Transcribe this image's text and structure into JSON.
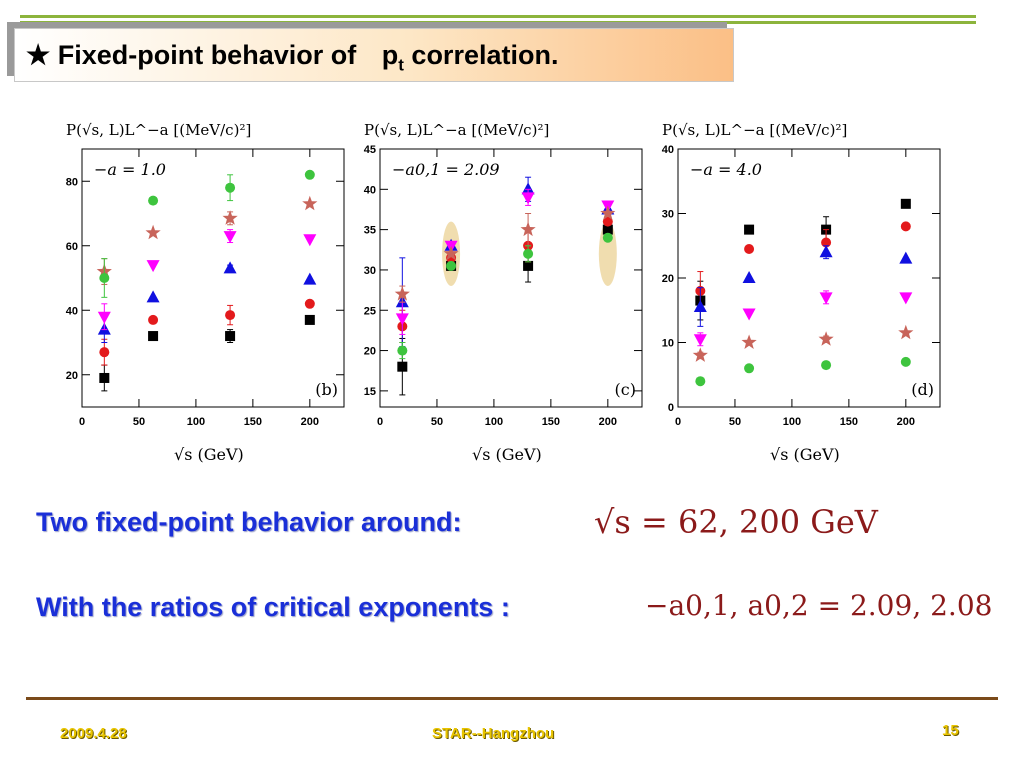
{
  "slide": {
    "title_prefix": "★ Fixed-point behavior of",
    "title_var": "p",
    "title_sub": "t",
    "title_suffix": "correlation.",
    "line1": "Two fixed-point behavior around:",
    "line2": "With the ratios of critical exponents :",
    "formula1": "√s = 62,    200 GeV",
    "formula2": "−a0,1, a0,2 = 2.09,   2.08",
    "footer_date": "2009.4.28",
    "footer_event": "STAR--Hangzhou",
    "footer_page": "15"
  },
  "colors": {
    "black": "#000000",
    "red": "#e31a1c",
    "blue": "#1010e0",
    "magenta": "#ff00ff",
    "star": "#c8645a",
    "green": "#3ec43e"
  },
  "chart_data": [
    {
      "type": "scatter",
      "ylabel": "P(√s, L)L^−a [(MeV/c)²]",
      "xlabel": "√s (GeV)",
      "annotation": "−a = 1.0",
      "panel_label": "(b)",
      "xlim": [
        0,
        230
      ],
      "ylim": [
        10,
        90
      ],
      "xticks": [
        0,
        50,
        100,
        150,
        200
      ],
      "yticks": [
        20,
        40,
        60,
        80
      ],
      "series": [
        {
          "name": "square",
          "marker": "square",
          "color": "#000000",
          "x": [
            19.6,
            62.4,
            130,
            200
          ],
          "y": [
            19,
            32,
            32,
            37
          ],
          "err": [
            4,
            0,
            2,
            0
          ]
        },
        {
          "name": "circle-red",
          "marker": "circle",
          "color": "#e31a1c",
          "x": [
            19.6,
            62.4,
            130,
            200
          ],
          "y": [
            27,
            37,
            38.5,
            42
          ],
          "err": [
            4,
            0,
            3,
            0
          ]
        },
        {
          "name": "tri-up",
          "marker": "triangle-up",
          "color": "#1010e0",
          "x": [
            19.6,
            62.4,
            130,
            200
          ],
          "y": [
            34,
            44,
            53,
            49.5
          ],
          "err": [
            4,
            0,
            1,
            0
          ]
        },
        {
          "name": "tri-down",
          "marker": "triangle-down",
          "color": "#ff00ff",
          "x": [
            19.6,
            62.4,
            130,
            200
          ],
          "y": [
            38,
            54,
            63,
            62
          ],
          "err": [
            4,
            0,
            2,
            0
          ]
        },
        {
          "name": "star",
          "marker": "star",
          "color": "#c8645a",
          "x": [
            19.6,
            62.4,
            130,
            200
          ],
          "y": [
            52,
            64,
            68.5,
            73
          ],
          "err": [
            4,
            0,
            2,
            0
          ]
        },
        {
          "name": "circle-green",
          "marker": "circle",
          "color": "#3ec43e",
          "x": [
            19.6,
            62.4,
            130,
            200
          ],
          "y": [
            50,
            74,
            78,
            82
          ],
          "err": [
            6,
            0,
            4,
            0
          ]
        }
      ]
    },
    {
      "type": "scatter",
      "ylabel": "P(√s, L)L^−a [(MeV/c)²]",
      "xlabel": "√s (GeV)",
      "annotation": "−a0,1 = 2.09",
      "panel_label": "(c)",
      "xlim": [
        0,
        230
      ],
      "ylim": [
        13,
        45
      ],
      "xticks": [
        0,
        50,
        100,
        150,
        200
      ],
      "yticks": [
        15,
        20,
        25,
        30,
        35,
        40,
        45
      ],
      "series": [
        {
          "name": "square",
          "marker": "square",
          "color": "#000000",
          "x": [
            19.6,
            62.4,
            130,
            200
          ],
          "y": [
            18,
            30.5,
            30.5,
            35
          ],
          "err": [
            3.5,
            0,
            2,
            0
          ]
        },
        {
          "name": "circle-red",
          "marker": "circle",
          "color": "#e31a1c",
          "x": [
            19.6,
            62.4,
            130,
            200
          ],
          "y": [
            23,
            31.5,
            33,
            36
          ],
          "err": [
            2,
            0,
            2,
            0
          ]
        },
        {
          "name": "tri-up",
          "marker": "triangle-up",
          "color": "#1010e0",
          "x": [
            19.6,
            62.4,
            130,
            200
          ],
          "y": [
            26,
            33,
            40,
            37.5
          ],
          "err": [
            5.5,
            0,
            1.5,
            0
          ]
        },
        {
          "name": "tri-down",
          "marker": "triangle-down",
          "color": "#ff00ff",
          "x": [
            19.6,
            62.4,
            130,
            200
          ],
          "y": [
            24,
            33,
            39,
            38
          ],
          "err": [
            2,
            0,
            1,
            0
          ]
        },
        {
          "name": "star",
          "marker": "star",
          "color": "#c8645a",
          "x": [
            19.6,
            62.4,
            130,
            200
          ],
          "y": [
            27,
            32,
            35,
            37
          ],
          "err": [
            1,
            0,
            2,
            0
          ]
        },
        {
          "name": "circle-green",
          "marker": "circle",
          "color": "#3ec43e",
          "x": [
            19.6,
            62.4,
            130,
            200
          ],
          "y": [
            20,
            30.5,
            32,
            34
          ],
          "err": [
            1,
            0,
            1,
            0
          ]
        }
      ]
    },
    {
      "type": "scatter",
      "ylabel": "P(√s, L)L^−a [(MeV/c)²]",
      "xlabel": "√s (GeV)",
      "annotation": "−a = 4.0",
      "panel_label": "(d)",
      "xlim": [
        0,
        230
      ],
      "ylim": [
        0,
        40
      ],
      "xticks": [
        0,
        50,
        100,
        150,
        200
      ],
      "yticks": [
        0,
        10,
        20,
        30,
        40
      ],
      "series": [
        {
          "name": "square",
          "marker": "square",
          "color": "#000000",
          "x": [
            19.6,
            62.4,
            130,
            200
          ],
          "y": [
            16.5,
            27.5,
            27.5,
            31.5
          ],
          "err": [
            3,
            0,
            2,
            0
          ]
        },
        {
          "name": "circle-red",
          "marker": "circle",
          "color": "#e31a1c",
          "x": [
            19.6,
            62.4,
            130,
            200
          ],
          "y": [
            18,
            24.5,
            25.5,
            28
          ],
          "err": [
            3,
            0,
            2,
            0
          ]
        },
        {
          "name": "tri-up",
          "marker": "triangle-up",
          "color": "#1010e0",
          "x": [
            19.6,
            62.4,
            130,
            200
          ],
          "y": [
            15.5,
            20,
            24,
            23
          ],
          "err": [
            3,
            0,
            1,
            0
          ]
        },
        {
          "name": "tri-down",
          "marker": "triangle-down",
          "color": "#ff00ff",
          "x": [
            19.6,
            62.4,
            130,
            200
          ],
          "y": [
            10.5,
            14.5,
            17,
            17
          ],
          "err": [
            1,
            0,
            1,
            0
          ]
        },
        {
          "name": "star",
          "marker": "star",
          "color": "#c8645a",
          "x": [
            19.6,
            62.4,
            130,
            200
          ],
          "y": [
            8,
            10,
            10.5,
            11.5
          ],
          "err": [
            0.5,
            0,
            0.5,
            0
          ]
        },
        {
          "name": "circle-green",
          "marker": "circle",
          "color": "#3ec43e",
          "x": [
            19.6,
            62.4,
            130,
            200
          ],
          "y": [
            4,
            6,
            6.5,
            7
          ],
          "err": [
            0.3,
            0,
            0.3,
            0
          ]
        }
      ]
    }
  ]
}
